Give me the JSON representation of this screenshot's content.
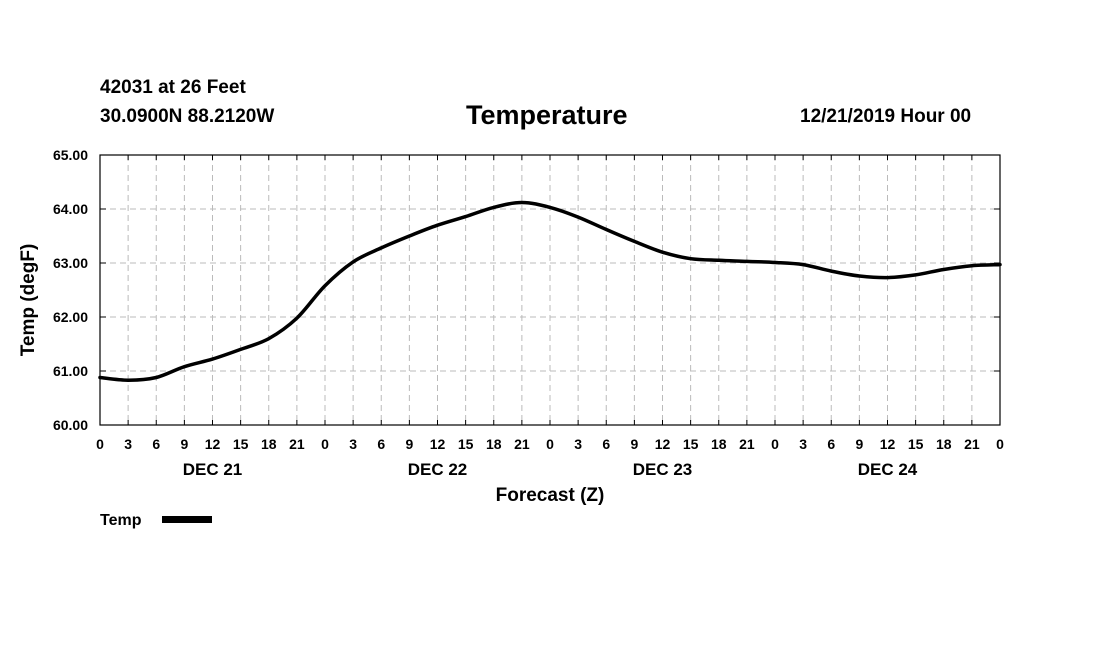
{
  "header": {
    "station": "42031 at 26 Feet",
    "coords": "30.0900N 88.2120W",
    "title": "Temperature",
    "datetime": "12/21/2019 Hour 00"
  },
  "chart_data": {
    "type": "line",
    "title": "Temperature",
    "xlabel": "Forecast (Z)",
    "ylabel": "Temp (degF)",
    "ylim": [
      60,
      65
    ],
    "yticks": [
      "60.00",
      "61.00",
      "62.00",
      "63.00",
      "64.00",
      "65.00"
    ],
    "x_range_hours": [
      0,
      96
    ],
    "xtick_labels": [
      "0",
      "3",
      "6",
      "9",
      "12",
      "15",
      "18",
      "21",
      "0",
      "3",
      "6",
      "9",
      "12",
      "15",
      "18",
      "21",
      "0",
      "3",
      "6",
      "9",
      "12",
      "15",
      "18",
      "21",
      "0",
      "3",
      "6",
      "9",
      "12",
      "15",
      "18",
      "21",
      "0"
    ],
    "day_labels": [
      {
        "label": "DEC 21",
        "hour": 12
      },
      {
        "label": "DEC 22",
        "hour": 36
      },
      {
        "label": "DEC 23",
        "hour": 60
      },
      {
        "label": "DEC 24",
        "hour": 84
      }
    ],
    "grid": true,
    "legend": "bottom-left",
    "series": [
      {
        "name": "Temp",
        "color": "#000000",
        "x": [
          0,
          3,
          6,
          9,
          12,
          15,
          18,
          21,
          24,
          27,
          30,
          33,
          36,
          39,
          42,
          45,
          48,
          51,
          54,
          57,
          60,
          63,
          66,
          69,
          72,
          75,
          78,
          81,
          84,
          87,
          90,
          93,
          96
        ],
        "values": [
          60.88,
          60.83,
          60.88,
          61.08,
          61.22,
          61.4,
          61.6,
          61.98,
          62.58,
          63.02,
          63.28,
          63.5,
          63.7,
          63.86,
          64.03,
          64.12,
          64.03,
          63.85,
          63.62,
          63.4,
          63.2,
          63.08,
          63.05,
          63.03,
          63.01,
          62.97,
          62.85,
          62.76,
          62.73,
          62.78,
          62.88,
          62.95,
          62.97
        ]
      }
    ]
  }
}
